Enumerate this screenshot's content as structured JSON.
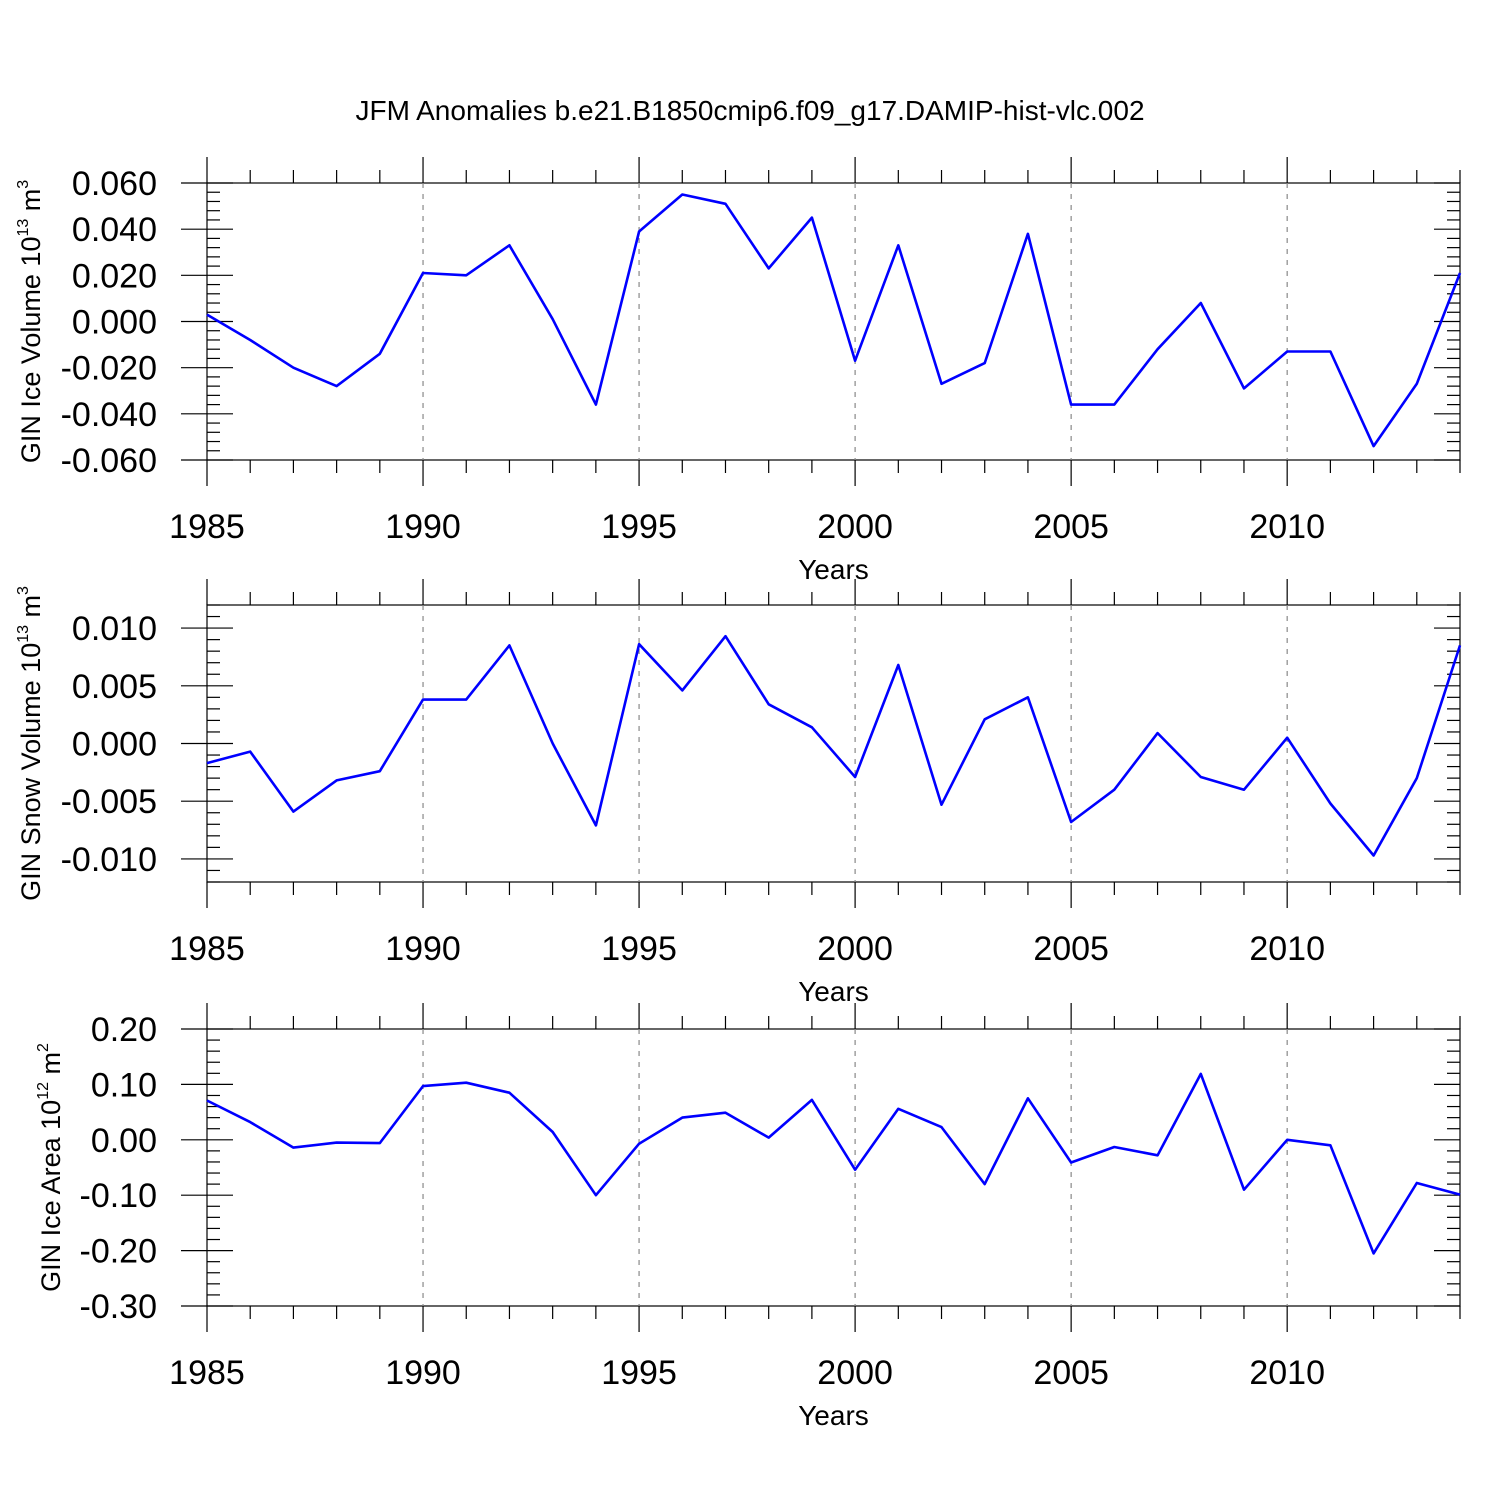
{
  "title": "JFM Anomalies b.e21.B1850cmip6.f09_g17.DAMIP-hist-vlc.002",
  "colors": {
    "series": "#0000ff",
    "frame": "#000000",
    "grid": "#888888"
  },
  "chart_data": [
    {
      "type": "line",
      "ylabel": {
        "text": "GIN Ice Volume 10",
        "sup": "13",
        "unit": " m",
        "unit_sup": "3"
      },
      "xlabel": "Years",
      "xlim": [
        1985,
        2014
      ],
      "ylim": [
        -0.06,
        0.06
      ],
      "yticks": [
        -0.06,
        -0.04,
        -0.02,
        0.0,
        0.02,
        0.04,
        0.06
      ],
      "ytick_labels": [
        "-0.060",
        "-0.040",
        "-0.020",
        "0.000",
        "0.020",
        "0.040",
        "0.060"
      ],
      "xticks": [
        1985,
        1990,
        1995,
        2000,
        2005,
        2010
      ],
      "xtick_labels": [
        "1985",
        "1990",
        "1995",
        "2000",
        "2005",
        "2010"
      ],
      "x": [
        1985,
        1986,
        1987,
        1988,
        1989,
        1990,
        1991,
        1992,
        1993,
        1994,
        1995,
        1996,
        1997,
        1998,
        1999,
        2000,
        2001,
        2002,
        2003,
        2004,
        2005,
        2006,
        2007,
        2008,
        2009,
        2010,
        2011,
        2012,
        2013,
        2014
      ],
      "values": [
        0.003,
        -0.008,
        -0.02,
        -0.028,
        -0.014,
        0.021,
        0.02,
        0.033,
        0.001,
        -0.036,
        0.039,
        0.055,
        0.051,
        0.023,
        0.045,
        -0.017,
        0.033,
        -0.027,
        -0.018,
        0.038,
        -0.036,
        -0.036,
        -0.012,
        0.008,
        -0.029,
        -0.013,
        -0.013,
        -0.054,
        -0.027,
        0.021
      ]
    },
    {
      "type": "line",
      "ylabel": {
        "text": "GIN Snow Volume 10",
        "sup": "13",
        "unit": " m",
        "unit_sup": "3"
      },
      "xlabel": "Years",
      "xlim": [
        1985,
        2014
      ],
      "ylim": [
        -0.012,
        0.012
      ],
      "yticks": [
        -0.01,
        -0.005,
        0.0,
        0.005,
        0.01
      ],
      "ytick_labels": [
        "-0.010",
        "-0.005",
        "0.000",
        "0.005",
        "0.010"
      ],
      "xticks": [
        1985,
        1990,
        1995,
        2000,
        2005,
        2010
      ],
      "xtick_labels": [
        "1985",
        "1990",
        "1995",
        "2000",
        "2005",
        "2010"
      ],
      "x": [
        1985,
        1986,
        1987,
        1988,
        1989,
        1990,
        1991,
        1992,
        1993,
        1994,
        1995,
        1996,
        1997,
        1998,
        1999,
        2000,
        2001,
        2002,
        2003,
        2004,
        2005,
        2006,
        2007,
        2008,
        2009,
        2010,
        2011,
        2012,
        2013,
        2014
      ],
      "values": [
        -0.0017,
        -0.0007,
        -0.0059,
        -0.0032,
        -0.0024,
        0.0038,
        0.0038,
        0.0085,
        0.0,
        -0.0071,
        0.0086,
        0.0046,
        0.0093,
        0.0034,
        0.0014,
        -0.0029,
        0.0068,
        -0.0053,
        0.0021,
        0.004,
        -0.0068,
        -0.004,
        0.0009,
        -0.0029,
        -0.004,
        0.0005,
        -0.0052,
        -0.0097,
        -0.003,
        0.0085
      ]
    },
    {
      "type": "line",
      "ylabel": {
        "text": "GIN Ice Area 10",
        "sup": "12",
        "unit": " m",
        "unit_sup": "2"
      },
      "xlabel": "Years",
      "xlim": [
        1985,
        2014
      ],
      "ylim": [
        -0.3,
        0.2
      ],
      "yticks": [
        -0.3,
        -0.2,
        -0.1,
        0.0,
        0.1,
        0.2
      ],
      "ytick_labels": [
        "-0.30",
        "-0.20",
        "-0.10",
        "0.00",
        "0.10",
        "0.20"
      ],
      "xticks": [
        1985,
        1990,
        1995,
        2000,
        2005,
        2010
      ],
      "xtick_labels": [
        "1985",
        "1990",
        "1995",
        "2000",
        "2005",
        "2010"
      ],
      "x": [
        1985,
        1986,
        1987,
        1988,
        1989,
        1990,
        1991,
        1992,
        1993,
        1994,
        1995,
        1996,
        1997,
        1998,
        1999,
        2000,
        2001,
        2002,
        2003,
        2004,
        2005,
        2006,
        2007,
        2008,
        2009,
        2010,
        2011,
        2012,
        2013,
        2014
      ],
      "values": [
        0.071,
        0.032,
        -0.014,
        -0.005,
        -0.006,
        0.097,
        0.103,
        0.085,
        0.014,
        -0.1,
        -0.007,
        0.04,
        0.049,
        0.004,
        0.072,
        -0.054,
        0.056,
        0.023,
        -0.08,
        0.075,
        -0.041,
        -0.013,
        -0.028,
        0.119,
        -0.09,
        0.0,
        -0.01,
        -0.205,
        -0.078,
        -0.099
      ]
    }
  ]
}
